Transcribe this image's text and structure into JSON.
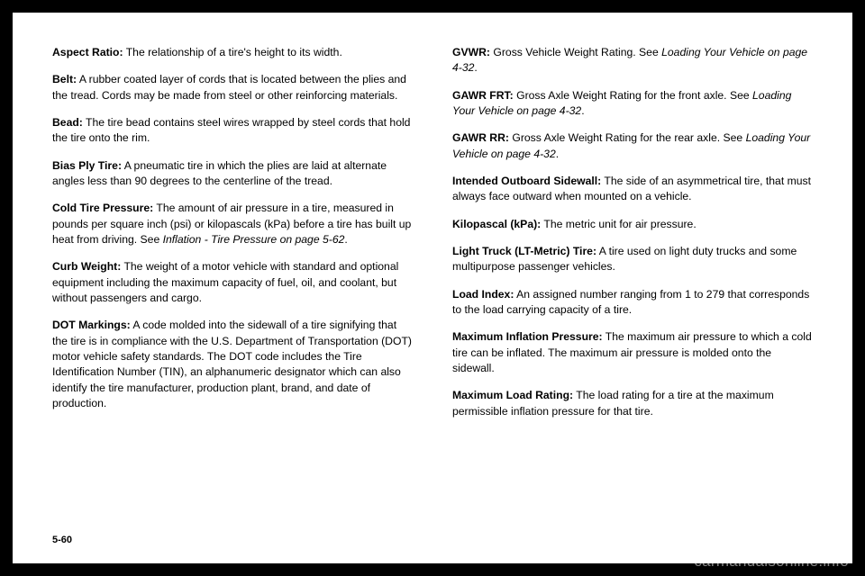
{
  "leftColumn": [
    {
      "term": "Aspect Ratio:",
      "def": "The relationship of a tire's height to its width."
    },
    {
      "term": "Belt:",
      "def": "A rubber coated layer of cords that is located between the plies and the tread. Cords may be made from steel or other reinforcing materials."
    },
    {
      "term": "Bead:",
      "def": "The tire bead contains steel wires wrapped by steel cords that hold the tire onto the rim."
    },
    {
      "term": "Bias Ply Tire:",
      "def": "A pneumatic tire in which the plies are laid at alternate angles less than 90 degrees to the centerline of the tread."
    },
    {
      "term": "Cold Tire Pressure:",
      "def": "The amount of air pressure in a tire, measured in pounds per square inch (psi) or kilopascals (kPa) before a tire has built up heat from driving. See ",
      "italic": "Inflation - Tire Pressure on page 5-62",
      "after": "."
    },
    {
      "term": "Curb Weight:",
      "def": "The weight of a motor vehicle with standard and optional equipment including the maximum capacity of fuel, oil, and coolant, but without passengers and cargo."
    },
    {
      "term": "DOT Markings:",
      "def": "A code molded into the sidewall of a tire signifying that the tire is in compliance with the U.S. Department of Transportation (DOT) motor vehicle safety standards. The DOT code includes the Tire Identification Number (TIN), an alphanumeric designator which can also identify the tire manufacturer, production plant, brand, and date of production."
    }
  ],
  "rightColumn": [
    {
      "term": "GVWR:",
      "def": "Gross Vehicle Weight Rating. See ",
      "italic": "Loading Your Vehicle on page 4-32",
      "after": "."
    },
    {
      "term": "GAWR FRT:",
      "def": "Gross Axle Weight Rating for the front axle. See ",
      "italic": "Loading Your Vehicle on page 4-32",
      "after": "."
    },
    {
      "term": "GAWR RR:",
      "def": "Gross Axle Weight Rating for the rear axle. See ",
      "italic": "Loading Your Vehicle on page 4-32",
      "after": "."
    },
    {
      "term": "Intended Outboard Sidewall:",
      "def": "The side of an asymmetrical tire, that must always face outward when mounted on a vehicle."
    },
    {
      "term": "Kilopascal (kPa):",
      "def": "The metric unit for air pressure."
    },
    {
      "term": "Light Truck (LT-Metric) Tire:",
      "def": "A tire used on light duty trucks and some multipurpose passenger vehicles."
    },
    {
      "term": "Load Index:",
      "def": "An assigned number ranging from 1 to 279 that corresponds to the load carrying capacity of a tire."
    },
    {
      "term": "Maximum Inflation Pressure:",
      "def": "The maximum air pressure to which a cold tire can be inflated. The maximum air pressure is molded onto the sidewall."
    },
    {
      "term": "Maximum Load Rating:",
      "def": "The load rating for a tire at the maximum permissible inflation pressure for that tire."
    }
  ],
  "pageNumber": "5-60",
  "watermark": "carmanualsonline.info"
}
